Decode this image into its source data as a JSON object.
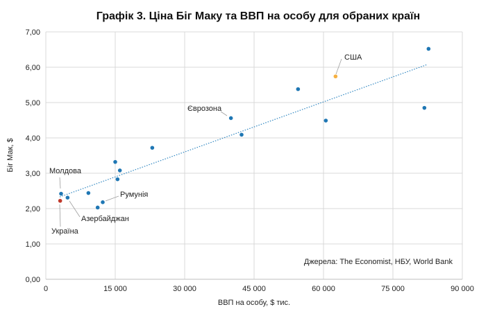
{
  "chart_data": {
    "type": "scatter",
    "title": "Графік 3. Ціна Біг Маку та ВВП на особу для обраних країн",
    "xlabel": "ВВП на особу, $ тис.",
    "ylabel": "Біг Мак, $",
    "xlim": [
      0,
      90000
    ],
    "ylim": [
      0,
      7
    ],
    "x_ticks": [
      "0",
      "15 000",
      "30 000",
      "45 000",
      "60 000",
      "75 000",
      "90 000"
    ],
    "x_tick_values": [
      0,
      15000,
      30000,
      45000,
      60000,
      75000,
      90000
    ],
    "y_ticks": [
      "0,00",
      "1,00",
      "2,00",
      "3,00",
      "4,00",
      "5,00",
      "6,00",
      "7,00"
    ],
    "y_tick_values": [
      0,
      1,
      2,
      3,
      4,
      5,
      6,
      7
    ],
    "grid": true,
    "source": "Джерела: The Economist, НБУ, World Bank",
    "colors": {
      "default": "#1f77b4",
      "Україна": "#c0392b",
      "США": "#f5b041",
      "trendline": "#2e86c1"
    },
    "points": [
      {
        "x": 3100,
        "y": 2.22,
        "label": "Україна"
      },
      {
        "x": 3300,
        "y": 2.42,
        "label": "Молдова"
      },
      {
        "x": 4700,
        "y": 2.31,
        "label": "Азербайджан"
      },
      {
        "x": 9200,
        "y": 2.44,
        "label": ""
      },
      {
        "x": 11200,
        "y": 2.03,
        "label": ""
      },
      {
        "x": 12300,
        "y": 2.18,
        "label": "Румунія"
      },
      {
        "x": 15000,
        "y": 3.32,
        "label": ""
      },
      {
        "x": 15500,
        "y": 2.83,
        "label": ""
      },
      {
        "x": 16000,
        "y": 3.08,
        "label": ""
      },
      {
        "x": 23000,
        "y": 3.72,
        "label": ""
      },
      {
        "x": 40000,
        "y": 4.56,
        "label": "Єврозона"
      },
      {
        "x": 42300,
        "y": 4.09,
        "label": ""
      },
      {
        "x": 54500,
        "y": 5.38,
        "label": ""
      },
      {
        "x": 60500,
        "y": 4.49,
        "label": ""
      },
      {
        "x": 62600,
        "y": 5.74,
        "label": "США"
      },
      {
        "x": 81800,
        "y": 4.85,
        "label": ""
      },
      {
        "x": 82700,
        "y": 6.52,
        "label": ""
      }
    ],
    "trendline": {
      "x": [
        3000,
        82500
      ],
      "y": [
        2.33,
        6.08
      ]
    }
  }
}
